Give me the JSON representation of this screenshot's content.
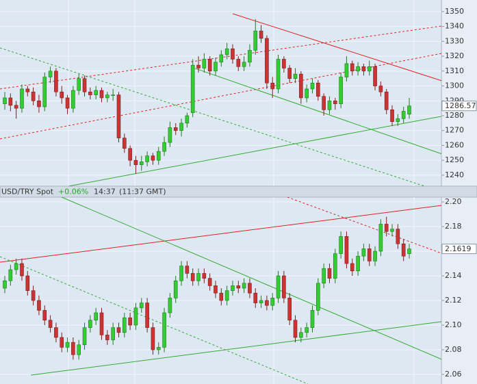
{
  "chart_data": [
    {
      "type": "candlestick",
      "up_color": "#33cc33",
      "down_color": "#cc3333",
      "ylim": [
        1232.6,
        1357.8
      ],
      "yticks": [
        1240,
        1250,
        1260,
        1270,
        1280,
        1290,
        1300,
        1310,
        1320,
        1330,
        1340,
        1350
      ],
      "grid": true,
      "last": 1286.57,
      "open": [
        1288,
        1292,
        1287,
        1285,
        1298,
        1296,
        1290,
        1286,
        1306,
        1310,
        1296,
        1292,
        1285,
        1297,
        1305,
        1296,
        1294,
        1297,
        1292,
        1294,
        1294,
        1265,
        1258,
        1250,
        1247,
        1249,
        1253,
        1250,
        1256,
        1262,
        1272,
        1270,
        1275,
        1282,
        1314,
        1312,
        1318,
        1310,
        1316,
        1321,
        1325,
        1318,
        1313,
        1316,
        1324,
        1337,
        1332,
        1302,
        1298,
        1318,
        1312,
        1305,
        1308,
        1292,
        1298,
        1302,
        1293,
        1284,
        1290,
        1288,
        1306,
        1315,
        1310,
        1313,
        1310,
        1313,
        1300,
        1296,
        1284,
        1276,
        1278,
        1281
      ],
      "high": [
        1296,
        1295,
        1290,
        1301,
        1300,
        1299,
        1294,
        1309,
        1313,
        1312,
        1300,
        1294,
        1300,
        1308,
        1307,
        1299,
        1300,
        1299,
        1296,
        1298,
        1296,
        1268,
        1260,
        1253,
        1253,
        1256,
        1255,
        1259,
        1266,
        1276,
        1275,
        1278,
        1282,
        1318,
        1320,
        1322,
        1320,
        1319,
        1324,
        1329,
        1328,
        1320,
        1320,
        1328,
        1345,
        1341,
        1334,
        1306,
        1321,
        1320,
        1314,
        1312,
        1310,
        1301,
        1305,
        1304,
        1295,
        1293,
        1292,
        1309,
        1320,
        1317,
        1316,
        1315,
        1317,
        1315,
        1303,
        1298,
        1287,
        1281,
        1286,
        1292
      ],
      "low": [
        1284,
        1283,
        1278,
        1282,
        1293,
        1287,
        1282,
        1283,
        1302,
        1293,
        1288,
        1281,
        1282,
        1294,
        1293,
        1291,
        1291,
        1289,
        1289,
        1290,
        1262,
        1255,
        1246,
        1241,
        1243,
        1246,
        1247,
        1247,
        1253,
        1259,
        1267,
        1266,
        1272,
        1279,
        1309,
        1309,
        1307,
        1307,
        1313,
        1318,
        1315,
        1310,
        1310,
        1313,
        1321,
        1329,
        1298,
        1292,
        1295,
        1309,
        1302,
        1302,
        1288,
        1289,
        1295,
        1290,
        1280,
        1281,
        1284,
        1285,
        1303,
        1307,
        1307,
        1307,
        1307,
        1297,
        1293,
        1281,
        1273,
        1273,
        1275,
        1278
      ],
      "close": [
        1292,
        1287,
        1285,
        1298,
        1296,
        1290,
        1286,
        1306,
        1310,
        1296,
        1292,
        1285,
        1297,
        1305,
        1296,
        1294,
        1297,
        1292,
        1294,
        1294,
        1265,
        1258,
        1250,
        1247,
        1249,
        1253,
        1250,
        1256,
        1262,
        1272,
        1270,
        1275,
        1280,
        1314,
        1312,
        1318,
        1310,
        1316,
        1321,
        1325,
        1318,
        1313,
        1316,
        1324,
        1337,
        1332,
        1302,
        1298,
        1318,
        1312,
        1305,
        1308,
        1292,
        1298,
        1302,
        1293,
        1284,
        1290,
        1288,
        1306,
        1315,
        1310,
        1313,
        1310,
        1313,
        1300,
        1296,
        1284,
        1276,
        1278,
        1283,
        1286.57
      ],
      "trendlines": [
        {
          "x": [
            40.0,
            76.7
          ],
          "y": [
            1348.6,
            1303.5
          ],
          "color": "#dd2222",
          "dashed": false
        },
        {
          "x": [
            -0.84,
            76.7
          ],
          "y": [
            1298,
            1340.3
          ],
          "color": "#dd2222",
          "dashed": true
        },
        {
          "x": [
            -0.84,
            76.7
          ],
          "y": [
            1264.4,
            1321.9
          ],
          "color": "#dd2222",
          "dashed": true
        },
        {
          "x": [
            11.2,
            76.7
          ],
          "y": [
            1232.6,
            1279.6
          ],
          "color": "#33aa33",
          "dashed": false
        },
        {
          "x": [
            33.4,
            76.7
          ],
          "y": [
            1311.8,
            1254.3
          ],
          "color": "#33aa33",
          "dashed": false
        },
        {
          "x": [
            -0.84,
            73.7
          ],
          "y": [
            1325.6,
            1232.6
          ],
          "color": "#33aa33",
          "dashed": true
        }
      ]
    },
    {
      "type": "candlestick",
      "title": "USD/TRY Spot",
      "change": "+0.06%",
      "time": "14:37",
      "gmt": "(11:37 GMT)",
      "up_color": "#33cc33",
      "down_color": "#cc3333",
      "ylim": [
        2.0522,
        2.2039
      ],
      "yticks": [
        2.06,
        2.08,
        {
          "value": 2.1,
          "label": "2.10"
        },
        2.12,
        2.14,
        2.16,
        2.18,
        {
          "value": 2.2,
          "label": "2.20"
        }
      ],
      "grid": true,
      "last": 2.1619,
      "open": [
        2.13,
        2.136,
        2.145,
        2.15,
        2.14,
        2.128,
        2.12,
        2.112,
        2.104,
        2.098,
        2.09,
        2.082,
        2.086,
        2.076,
        2.084,
        2.098,
        2.104,
        2.11,
        2.092,
        2.088,
        2.098,
        2.094,
        2.106,
        2.1,
        2.114,
        2.118,
        2.098,
        2.08,
        2.082,
        2.11,
        2.122,
        2.136,
        2.148,
        2.142,
        2.136,
        2.142,
        2.138,
        2.132,
        2.126,
        2.12,
        2.128,
        2.132,
        2.13,
        2.134,
        2.126,
        2.118,
        2.12,
        2.116,
        2.122,
        2.14,
        2.122,
        2.104,
        2.09,
        2.094,
        2.098,
        2.112,
        2.134,
        2.146,
        2.138,
        2.158,
        2.172,
        2.15,
        2.144,
        2.156,
        2.162,
        2.152,
        2.16,
        2.182,
        2.176,
        2.178,
        2.166,
        2.158
      ],
      "high": [
        2.14,
        2.149,
        2.154,
        2.154,
        2.144,
        2.132,
        2.124,
        2.116,
        2.108,
        2.102,
        2.094,
        2.09,
        2.09,
        2.088,
        2.102,
        2.108,
        2.114,
        2.114,
        2.096,
        2.102,
        2.102,
        2.11,
        2.11,
        2.118,
        2.122,
        2.122,
        2.102,
        2.086,
        2.114,
        2.126,
        2.14,
        2.152,
        2.152,
        2.146,
        2.146,
        2.146,
        2.142,
        2.136,
        2.13,
        2.132,
        2.136,
        2.136,
        2.138,
        2.138,
        2.13,
        2.124,
        2.124,
        2.126,
        2.144,
        2.144,
        2.126,
        2.108,
        2.098,
        2.102,
        2.116,
        2.138,
        2.15,
        2.15,
        2.162,
        2.176,
        2.176,
        2.154,
        2.16,
        2.166,
        2.166,
        2.164,
        2.186,
        2.188,
        2.182,
        2.182,
        2.17,
        2.166
      ],
      "low": [
        2.126,
        2.132,
        2.141,
        2.136,
        2.124,
        2.116,
        2.108,
        2.1,
        2.094,
        2.086,
        2.078,
        2.078,
        2.072,
        2.072,
        2.08,
        2.094,
        2.1,
        2.088,
        2.084,
        2.084,
        2.09,
        2.09,
        2.096,
        2.096,
        2.11,
        2.094,
        2.076,
        2.076,
        2.078,
        2.106,
        2.118,
        2.132,
        2.138,
        2.132,
        2.132,
        2.134,
        2.128,
        2.122,
        2.116,
        2.116,
        2.124,
        2.126,
        2.126,
        2.122,
        2.114,
        2.114,
        2.112,
        2.112,
        2.118,
        2.118,
        2.1,
        2.086,
        2.086,
        2.09,
        2.094,
        2.108,
        2.13,
        2.134,
        2.134,
        2.154,
        2.146,
        2.14,
        2.14,
        2.152,
        2.148,
        2.148,
        2.156,
        2.172,
        2.172,
        2.162,
        2.152,
        2.154
      ],
      "close": [
        2.136,
        2.145,
        2.15,
        2.14,
        2.128,
        2.12,
        2.112,
        2.104,
        2.098,
        2.09,
        2.082,
        2.086,
        2.076,
        2.084,
        2.098,
        2.104,
        2.11,
        2.092,
        2.088,
        2.098,
        2.094,
        2.106,
        2.1,
        2.114,
        2.118,
        2.098,
        2.08,
        2.082,
        2.11,
        2.122,
        2.136,
        2.148,
        2.142,
        2.136,
        2.142,
        2.138,
        2.132,
        2.126,
        2.12,
        2.128,
        2.132,
        2.13,
        2.134,
        2.126,
        2.118,
        2.12,
        2.116,
        2.122,
        2.14,
        2.122,
        2.104,
        2.09,
        2.094,
        2.098,
        2.112,
        2.134,
        2.146,
        2.138,
        2.158,
        2.172,
        2.15,
        2.144,
        2.156,
        2.162,
        2.152,
        2.16,
        2.182,
        2.176,
        2.178,
        2.166,
        2.156,
        2.1619
      ],
      "trendlines": [
        {
          "x": [
            -0.84,
            76.7
          ],
          "y": [
            2.1511,
            2.1972
          ],
          "color": "#dd2222",
          "dashed": false
        },
        {
          "x": [
            49.6,
            76.7
          ],
          "y": [
            2.2039,
            2.1583
          ],
          "color": "#dd2222",
          "dashed": true
        },
        {
          "x": [
            4.57,
            76.7
          ],
          "y": [
            2.0594,
            2.1028
          ],
          "color": "#33aa33",
          "dashed": false
        },
        {
          "x": [
            9.98,
            76.7
          ],
          "y": [
            2.2039,
            2.0722
          ],
          "color": "#33aa33",
          "dashed": false
        },
        {
          "x": [
            -0.84,
            53.2
          ],
          "y": [
            2.1556,
            2.0522
          ],
          "color": "#33aa33",
          "dashed": true
        }
      ]
    }
  ]
}
